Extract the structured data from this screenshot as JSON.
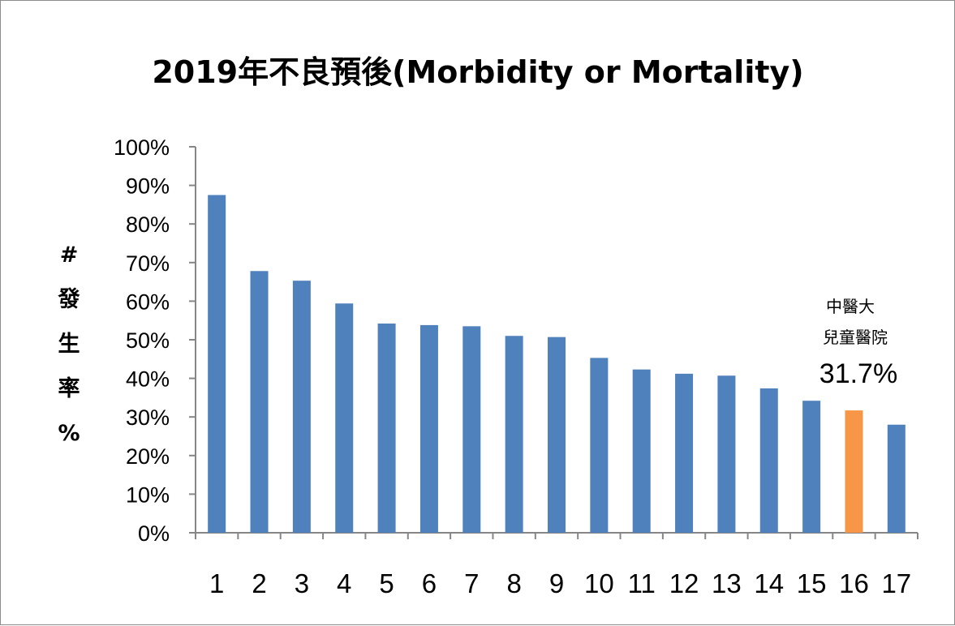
{
  "chart_data": {
    "type": "bar",
    "title": "2019年不良預後(Morbidity or Mortality)",
    "ylabel_chars": [
      "#",
      "發",
      "生",
      "率",
      "%"
    ],
    "ylim": [
      0,
      100
    ],
    "yticks": [
      "0%",
      "10%",
      "20%",
      "30%",
      "40%",
      "50%",
      "60%",
      "70%",
      "80%",
      "90%",
      "100%"
    ],
    "categories": [
      "1",
      "2",
      "3",
      "4",
      "5",
      "6",
      "7",
      "8",
      "9",
      "10",
      "11",
      "12",
      "13",
      "14",
      "15",
      "16",
      "17"
    ],
    "values": [
      87.5,
      67.8,
      65.3,
      59.4,
      54.2,
      53.8,
      53.5,
      51.0,
      50.7,
      45.3,
      42.3,
      41.2,
      40.7,
      37.4,
      34.2,
      31.7,
      28.0
    ],
    "bar_color": "#4f81bd",
    "highlight_index": 15,
    "highlight_color": "#f79646",
    "annotation": {
      "line1": "中醫大",
      "line2": "兒童醫院",
      "value": "31.7%"
    }
  }
}
